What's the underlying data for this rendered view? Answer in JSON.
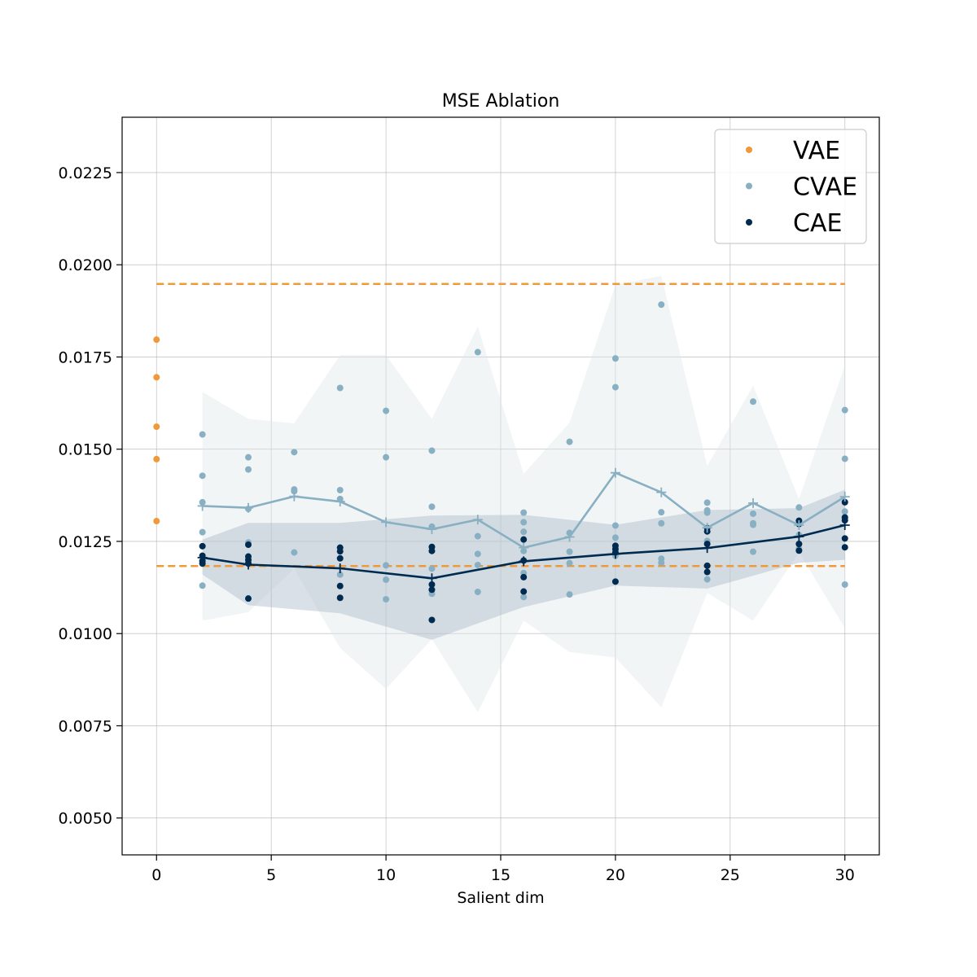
{
  "chart_data": {
    "type": "scatter",
    "title": "MSE Ablation",
    "xlabel": "Salient dim",
    "ylabel": "",
    "xlim": [
      -1.5,
      31.5
    ],
    "ylim": [
      0.004,
      0.024
    ],
    "xticks": [
      0,
      5,
      10,
      15,
      20,
      25,
      30
    ],
    "xtick_labels": [
      "0",
      "5",
      "10",
      "15",
      "20",
      "25",
      "30"
    ],
    "yticks": [
      0.005,
      0.0075,
      0.01,
      0.0125,
      0.015,
      0.0175,
      0.02,
      0.0225
    ],
    "ytick_labels": [
      "0.0050",
      "0.0075",
      "0.0100",
      "0.0125",
      "0.0150",
      "0.0175",
      "0.0200",
      "0.0225"
    ],
    "grid": true,
    "legend_position": "top-right",
    "legend": [
      "VAE",
      "CVAE",
      "CAE"
    ],
    "colors": {
      "VAE": "#f0993a",
      "CVAE": "#89b0c2",
      "CAE": "#002b50"
    },
    "vae_points": {
      "x": [
        0,
        0,
        0,
        0,
        0
      ],
      "y": [
        0.01797,
        0.01695,
        0.01561,
        0.01473,
        0.01305
      ]
    },
    "vae_reference_lines": [
      0.01948,
      0.01183
    ],
    "cvae_points": [
      {
        "x": 2,
        "y": [
          0.0154,
          0.01428,
          0.01356,
          0.01275,
          0.0113
        ]
      },
      {
        "x": 4,
        "y": [
          0.01478,
          0.01445,
          0.01338,
          0.01247,
          0.01195
        ]
      },
      {
        "x": 6,
        "y": [
          0.01492,
          0.01391,
          0.01386,
          0.0122
        ]
      },
      {
        "x": 8,
        "y": [
          0.01666,
          0.01389,
          0.01365,
          0.01233,
          0.0116
        ]
      },
      {
        "x": 10,
        "y": [
          0.01604,
          0.01478,
          0.01185,
          0.01146,
          0.01093
        ]
      },
      {
        "x": 12,
        "y": [
          0.01496,
          0.01344,
          0.0129,
          0.01176,
          0.01108
        ]
      },
      {
        "x": 14,
        "y": [
          0.01763,
          0.01264,
          0.01216,
          0.01186,
          0.01113
        ]
      },
      {
        "x": 16,
        "y": [
          0.01328,
          0.01302,
          0.01276,
          0.01224,
          0.01164,
          0.01099
        ]
      },
      {
        "x": 18,
        "y": [
          0.0152,
          0.01273,
          0.01222,
          0.01191,
          0.01106
        ]
      },
      {
        "x": 20,
        "y": [
          0.01746,
          0.01668,
          0.01293,
          0.0126,
          0.01211
        ]
      },
      {
        "x": 22,
        "y": [
          0.01892,
          0.01329,
          0.01299,
          0.01203,
          0.01192
        ]
      },
      {
        "x": 24,
        "y": [
          0.01355,
          0.01334,
          0.01328,
          0.01251,
          0.01147
        ]
      },
      {
        "x": 26,
        "y": [
          0.01629,
          0.01325,
          0.01299,
          0.01295,
          0.01222
        ]
      },
      {
        "x": 28,
        "y": [
          0.01342,
          0.01298,
          0.01267,
          0.01243,
          0.0123
        ]
      },
      {
        "x": 30,
        "y": [
          0.01606,
          0.01474,
          0.01357,
          0.01331,
          0.01313,
          0.01133
        ]
      }
    ],
    "cae_points": [
      {
        "x": 2,
        "y": [
          0.01237,
          0.01211,
          0.01197,
          0.0119
        ]
      },
      {
        "x": 4,
        "y": [
          0.01241,
          0.01209,
          0.012,
          0.0119,
          0.01095
        ]
      },
      {
        "x": 8,
        "y": [
          0.01233,
          0.01223,
          0.01204,
          0.01129,
          0.01097
        ]
      },
      {
        "x": 12,
        "y": [
          0.01235,
          0.01224,
          0.01133,
          0.01119,
          0.01037
        ]
      },
      {
        "x": 16,
        "y": [
          0.01255,
          0.01198,
          0.01153,
          0.01114
        ]
      },
      {
        "x": 20,
        "y": [
          0.01238,
          0.01229,
          0.0122,
          0.01141
        ]
      },
      {
        "x": 24,
        "y": [
          0.01286,
          0.01277,
          0.01243,
          0.01184,
          0.01167
        ]
      },
      {
        "x": 28,
        "y": [
          0.01306,
          0.01297,
          0.01243,
          0.01225
        ]
      },
      {
        "x": 30,
        "y": [
          0.01356,
          0.01315,
          0.01307,
          0.01258,
          0.01234
        ]
      }
    ],
    "series": [
      {
        "name": "CVAE",
        "x": [
          2,
          4,
          6,
          8,
          10,
          12,
          14,
          16,
          18,
          20,
          22,
          24,
          26,
          28,
          30
        ],
        "mean": [
          0.01346,
          0.01341,
          0.01372,
          0.01358,
          0.01302,
          0.01283,
          0.01309,
          0.01233,
          0.01262,
          0.01436,
          0.01383,
          0.01287,
          0.01354,
          0.01294,
          0.01371
        ],
        "lower": [
          0.01035,
          0.01058,
          0.01176,
          0.00961,
          0.0085,
          0.00985,
          0.00787,
          0.01035,
          0.0095,
          0.00935,
          0.008,
          0.0111,
          0.01035,
          0.0122,
          0.01015
        ],
        "upper": [
          0.01655,
          0.01582,
          0.0157,
          0.01755,
          0.01755,
          0.01582,
          0.01833,
          0.01433,
          0.01572,
          0.01945,
          0.0197,
          0.01455,
          0.01672,
          0.01365,
          0.01727
        ]
      },
      {
        "name": "CAE",
        "x": [
          2,
          4,
          8,
          12,
          16,
          20,
          24,
          28,
          30
        ],
        "mean": [
          0.01206,
          0.01187,
          0.01177,
          0.0115,
          0.01196,
          0.01216,
          0.01232,
          0.01263,
          0.01294
        ],
        "lower": [
          0.0116,
          0.01077,
          0.01055,
          0.00983,
          0.01072,
          0.0113,
          0.01122,
          0.01192,
          0.012
        ],
        "upper": [
          0.01255,
          0.013,
          0.013,
          0.0132,
          0.01322,
          0.01295,
          0.01335,
          0.0134,
          0.0139
        ]
      }
    ]
  }
}
